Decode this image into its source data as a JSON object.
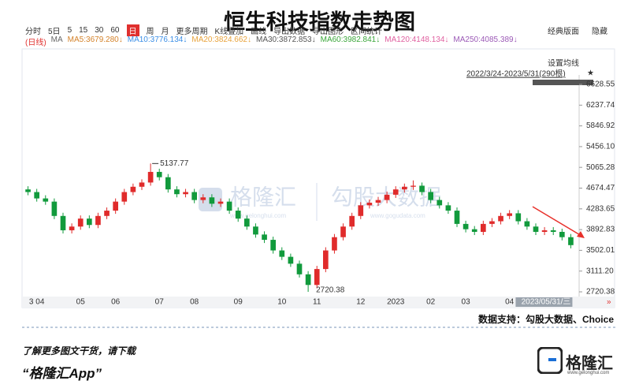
{
  "header": {
    "title": "恒生科技指数走势图"
  },
  "toolbar": {
    "items": [
      "分时",
      "5日",
      "5",
      "15",
      "30",
      "60",
      "日",
      "周",
      "月",
      "更多周期",
      "K线叠加",
      "画线",
      "导出数据",
      "导出图形",
      "区间统计"
    ],
    "right_items": [
      "经典版面",
      "隐藏"
    ]
  },
  "chart_data": {
    "type": "candlestick",
    "legend_prefix": "(日线)",
    "legend_ma": "MA",
    "ma": [
      {
        "name": "MA5:3679.280↓",
        "color": "#d4822a"
      },
      {
        "name": "MA10:3776.134↓",
        "color": "#3a8ee6"
      },
      {
        "name": "MA20:3824.662↓",
        "color": "#e8a33c"
      },
      {
        "name": "MA30:3872.853↓",
        "color": "#555555"
      },
      {
        "name": "MA60:3982.841↓",
        "color": "#3aa63a"
      },
      {
        "name": "MA120:4148.134↓",
        "color": "#e060a0"
      },
      {
        "name": "MA250:4085.389↓",
        "color": "#9b59b6"
      }
    ],
    "settings_label": "设置均线",
    "range_label": "2022/3/24-2023/5/31(290根)",
    "categories": [
      null,
      "3 04",
      null,
      null,
      null,
      null,
      "05",
      null,
      null,
      null,
      "06",
      null,
      null,
      null,
      null,
      "07",
      null,
      null,
      null,
      "08",
      null,
      null,
      null,
      null,
      "09",
      null,
      null,
      null,
      null,
      "10",
      null,
      null,
      null,
      "11",
      null,
      null,
      null,
      null,
      "12",
      null,
      null,
      null,
      "2023",
      null,
      null,
      null,
      "02",
      null,
      null,
      null,
      "03",
      null,
      null,
      null,
      null,
      "04",
      null,
      null,
      null,
      null,
      null,
      null,
      "2023/05/31/三"
    ],
    "open": [
      4650,
      4600,
      4480,
      4420,
      4150,
      3880,
      3950,
      4100,
      3980,
      4150,
      4250,
      4420,
      4600,
      4700,
      4780,
      4980,
      4880,
      4650,
      4560,
      4600,
      4450,
      4500,
      4380,
      4420,
      4250,
      4100,
      3950,
      3800,
      3700,
      3500,
      3380,
      3250,
      3050,
      2850,
      3150,
      3500,
      3750,
      3950,
      4150,
      4350,
      4400,
      4450,
      4550,
      4650,
      4700,
      4720,
      4600,
      4450,
      4350,
      4250,
      4000,
      3900,
      3850,
      4000,
      4050,
      4150,
      4200,
      4050,
      3950,
      3850,
      3880,
      3850,
      3750
    ],
    "high": [
      4710,
      4660,
      4540,
      4480,
      4210,
      4010,
      4160,
      4160,
      4210,
      4310,
      4480,
      4660,
      4760,
      4840,
      5137.77,
      5040,
      4940,
      4710,
      4660,
      4660,
      4560,
      4560,
      4480,
      4480,
      4310,
      4160,
      4010,
      3860,
      3760,
      3560,
      3440,
      3310,
      3110,
      3210,
      3560,
      3810,
      4010,
      4210,
      4410,
      4460,
      4510,
      4610,
      4710,
      4760,
      4820,
      4780,
      4660,
      4510,
      4410,
      4310,
      4060,
      3960,
      4060,
      4110,
      4210,
      4260,
      4260,
      4110,
      4010,
      3940,
      3940,
      3910,
      3810
    ],
    "low": [
      4540,
      4420,
      4360,
      4090,
      3820,
      3820,
      3890,
      3920,
      3920,
      4090,
      4190,
      4360,
      4540,
      4640,
      4720,
      4820,
      4590,
      4500,
      4500,
      4390,
      4390,
      4320,
      4320,
      4190,
      4040,
      3890,
      3740,
      3640,
      3440,
      3320,
      3190,
      2990,
      2720.38,
      2790,
      3090,
      3440,
      3690,
      3890,
      4090,
      4290,
      4340,
      4390,
      4490,
      4590,
      4640,
      4540,
      4390,
      4290,
      4190,
      3940,
      3840,
      3790,
      3790,
      3940,
      3990,
      4090,
      3990,
      3890,
      3790,
      3790,
      3790,
      3690,
      3540
    ],
    "close": [
      4600,
      4480,
      4420,
      4150,
      3880,
      3950,
      4100,
      3980,
      4150,
      4250,
      4420,
      4600,
      4700,
      4780,
      4980,
      4880,
      4650,
      4560,
      4600,
      4450,
      4500,
      4380,
      4420,
      4250,
      4100,
      3950,
      3800,
      3700,
      3500,
      3380,
      3250,
      3050,
      2850,
      3150,
      3500,
      3750,
      3950,
      4150,
      4350,
      4400,
      4450,
      4550,
      4650,
      4700,
      4720,
      4600,
      4450,
      4350,
      4250,
      4000,
      3900,
      3850,
      4000,
      4050,
      4150,
      4200,
      4050,
      3950,
      3850,
      3880,
      3850,
      3750,
      3600
    ],
    "up_color": "#e02b2b",
    "down_color": "#119a3c",
    "ylim": [
      2646,
      6807
    ],
    "yticks": [
      2720.38,
      {
        "value": 3111.2,
        "label": "3111.20"
      },
      3502.01,
      3892.83,
      4283.65,
      4674.47,
      5065.28,
      {
        "value": 5456.1,
        "label": "5456.10"
      },
      5846.92,
      6237.74,
      6628.55
    ],
    "grid": false
  },
  "watermark": {
    "left": "格隆汇",
    "left_url": "www.gelonghui.com",
    "right": "勾股大数据",
    "right_url": "www.gogudata.com"
  },
  "source": "数据支持：勾股大数据、Choice",
  "footer": {
    "line1": "了解更多图文干货，请下载",
    "line2": "“格隆汇App”",
    "logo": "格隆汇",
    "logo_url": "www.gelonghui.com"
  }
}
